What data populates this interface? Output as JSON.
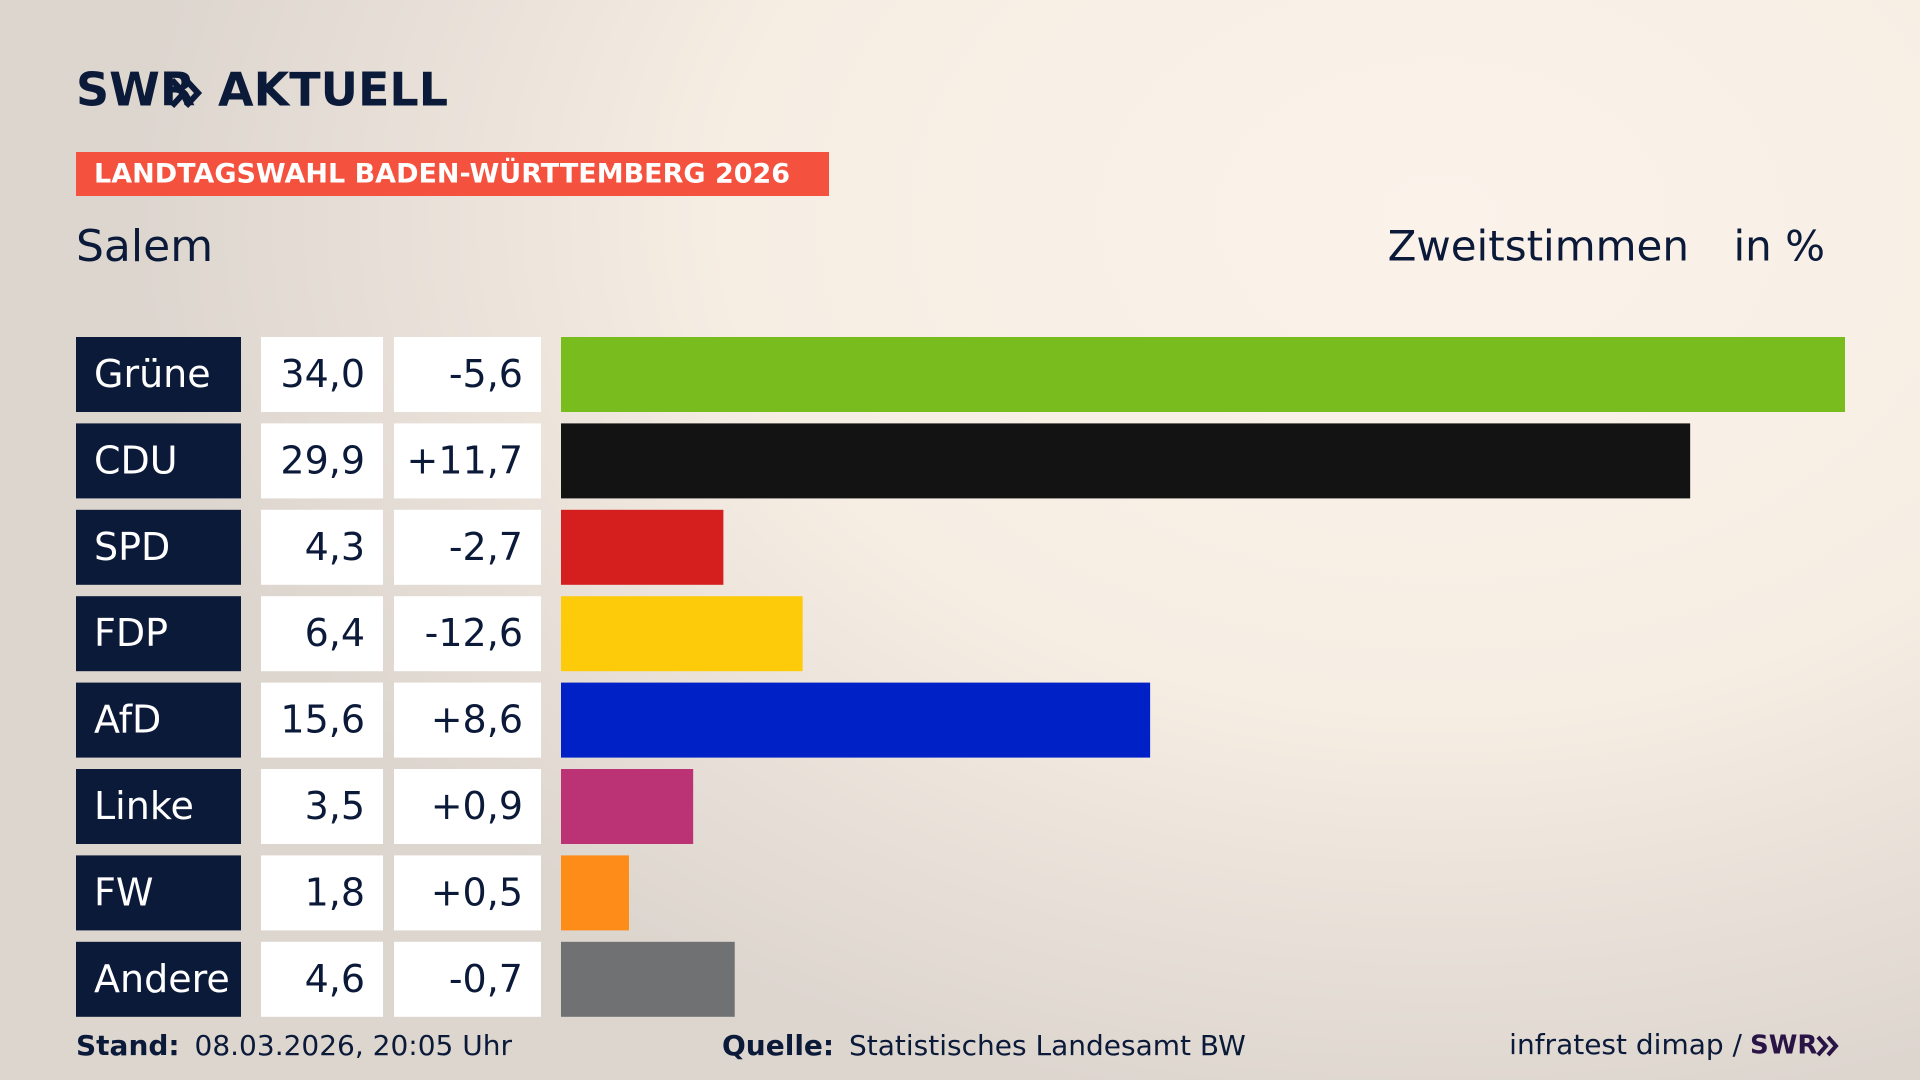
{
  "logo": {
    "left": "SWR",
    "right": "AKTUELL"
  },
  "chart_data": {
    "type": "bar",
    "orientation": "horizontal",
    "banner": "LANDTAGSWAHL BADEN-WÜRTTEMBERG 2026",
    "title": "Salem",
    "subtitle": "Zweitstimmen",
    "unit": "in %",
    "categories": [
      "Grüne",
      "CDU",
      "SPD",
      "FDP",
      "AfD",
      "Linke",
      "FW",
      "Andere"
    ],
    "values": [
      34.0,
      29.9,
      4.3,
      6.4,
      15.6,
      3.5,
      1.8,
      4.6
    ],
    "value_labels": [
      "34,0",
      "29,9",
      "4,3",
      "6,4",
      "15,6",
      "3,5",
      "1,8",
      "4,6"
    ],
    "change_labels": [
      "-5,6",
      "+11,7",
      "-2,7",
      "-12,6",
      "+8,6",
      "+0,9",
      "+0,5",
      "-0,7"
    ],
    "colors": [
      "#79bc1e",
      "#131313",
      "#d51f1f",
      "#fecb0b",
      "#0021c6",
      "#bc3375",
      "#fe8c18",
      "#707173"
    ]
  },
  "footer": {
    "stand_label": "Stand:",
    "stand": "08.03.2026, 20:05 Uhr",
    "source_label": "Quelle:",
    "source": "Statistisches Landesamt BW",
    "credit": "infratest dimap /",
    "credit_brand": "SWR"
  }
}
